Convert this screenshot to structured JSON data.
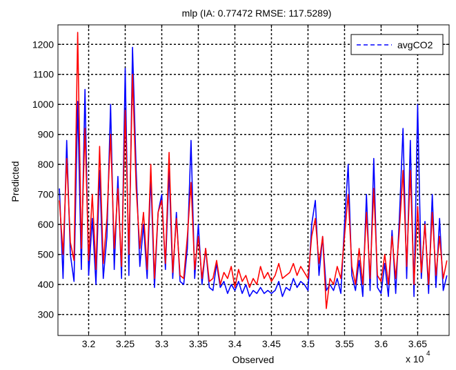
{
  "chart_data": {
    "type": "line",
    "title": "mlp (IA: 0.77472 RMSE: 117.5289)",
    "xlabel": "Observed",
    "ylabel": "Predicted",
    "x_exponent_label": "x 10",
    "x_exponent_power": "4",
    "xlim": [
      3.158,
      3.693
    ],
    "ylim": [
      230,
      1265
    ],
    "x_ticks": [
      3.2,
      3.25,
      3.3,
      3.35,
      3.4,
      3.45,
      3.5,
      3.55,
      3.6,
      3.65
    ],
    "x_tick_labels": [
      "3.2",
      "3.25",
      "3.3",
      "3.35",
      "3.4",
      "3.45",
      "3.5",
      "3.55",
      "3.6",
      "3.65"
    ],
    "y_ticks": [
      300,
      400,
      500,
      600,
      700,
      800,
      900,
      1000,
      1100,
      1200
    ],
    "y_tick_labels": [
      "300",
      "400",
      "500",
      "600",
      "700",
      "800",
      "900",
      "1000",
      "1100",
      "1200"
    ],
    "grid": true,
    "legend_position": "top-right",
    "legend": [
      {
        "label": "avgCO2",
        "style": "dashed"
      }
    ],
    "colors": {
      "observed": "#0000ff",
      "predicted": "#ff0000"
    },
    "series": [
      {
        "name": "avgCO2",
        "color": "#0000ff",
        "x": [
          3.16,
          3.165,
          3.17,
          3.175,
          3.18,
          3.185,
          3.19,
          3.195,
          3.2,
          3.205,
          3.21,
          3.215,
          3.22,
          3.225,
          3.23,
          3.235,
          3.24,
          3.245,
          3.25,
          3.255,
          3.26,
          3.265,
          3.27,
          3.275,
          3.28,
          3.285,
          3.29,
          3.295,
          3.3,
          3.305,
          3.31,
          3.315,
          3.32,
          3.325,
          3.33,
          3.335,
          3.34,
          3.345,
          3.35,
          3.355,
          3.36,
          3.365,
          3.37,
          3.375,
          3.38,
          3.385,
          3.39,
          3.395,
          3.4,
          3.405,
          3.41,
          3.415,
          3.42,
          3.425,
          3.43,
          3.435,
          3.44,
          3.445,
          3.45,
          3.455,
          3.46,
          3.465,
          3.47,
          3.475,
          3.48,
          3.485,
          3.49,
          3.495,
          3.5,
          3.505,
          3.51,
          3.515,
          3.52,
          3.525,
          3.53,
          3.535,
          3.54,
          3.545,
          3.55,
          3.555,
          3.56,
          3.565,
          3.57,
          3.575,
          3.58,
          3.585,
          3.59,
          3.595,
          3.6,
          3.605,
          3.61,
          3.615,
          3.62,
          3.625,
          3.63,
          3.635,
          3.64,
          3.645,
          3.65,
          3.655,
          3.66,
          3.665,
          3.67,
          3.675,
          3.68,
          3.685,
          3.69
        ],
        "y": [
          720,
          420,
          880,
          500,
          410,
          1010,
          450,
          1050,
          430,
          620,
          400,
          780,
          420,
          560,
          1000,
          450,
          760,
          420,
          1120,
          430,
          1190,
          780,
          460,
          600,
          420,
          760,
          390,
          640,
          700,
          450,
          780,
          420,
          640,
          410,
          400,
          520,
          880,
          420,
          600,
          400,
          520,
          390,
          380,
          470,
          390,
          410,
          370,
          400,
          380,
          410,
          370,
          400,
          360,
          380,
          370,
          390,
          370,
          380,
          370,
          380,
          410,
          360,
          390,
          380,
          420,
          390,
          410,
          400,
          380,
          600,
          680,
          430,
          560,
          380,
          400,
          380,
          420,
          370,
          600,
          800,
          430,
          380,
          480,
          360,
          700,
          380,
          820,
          390,
          370,
          470,
          360,
          580,
          370,
          620,
          920,
          420,
          880,
          360,
          1000,
          420,
          610,
          370,
          700,
          390,
          620,
          380,
          430
        ]
      },
      {
        "name": "",
        "color": "#ff0000",
        "x": [
          3.16,
          3.165,
          3.17,
          3.175,
          3.18,
          3.185,
          3.19,
          3.195,
          3.2,
          3.205,
          3.21,
          3.215,
          3.22,
          3.225,
          3.23,
          3.235,
          3.24,
          3.245,
          3.25,
          3.255,
          3.26,
          3.265,
          3.27,
          3.275,
          3.28,
          3.285,
          3.29,
          3.295,
          3.3,
          3.305,
          3.31,
          3.315,
          3.32,
          3.325,
          3.33,
          3.335,
          3.34,
          3.345,
          3.35,
          3.355,
          3.36,
          3.365,
          3.37,
          3.375,
          3.38,
          3.385,
          3.39,
          3.395,
          3.4,
          3.405,
          3.41,
          3.415,
          3.42,
          3.425,
          3.43,
          3.435,
          3.44,
          3.445,
          3.45,
          3.455,
          3.46,
          3.465,
          3.47,
          3.475,
          3.48,
          3.485,
          3.49,
          3.495,
          3.5,
          3.505,
          3.51,
          3.515,
          3.52,
          3.525,
          3.53,
          3.535,
          3.54,
          3.545,
          3.55,
          3.555,
          3.56,
          3.565,
          3.57,
          3.575,
          3.58,
          3.585,
          3.59,
          3.595,
          3.6,
          3.605,
          3.61,
          3.615,
          3.62,
          3.625,
          3.63,
          3.635,
          3.64,
          3.645,
          3.65,
          3.655,
          3.66,
          3.665,
          3.67,
          3.675,
          3.68,
          3.685,
          3.69
        ],
        "y": [
          680,
          500,
          820,
          540,
          480,
          1240,
          520,
          920,
          480,
          700,
          450,
          860,
          470,
          620,
          900,
          520,
          720,
          460,
          980,
          500,
          1100,
          720,
          520,
          640,
          450,
          800,
          420,
          640,
          680,
          470,
          840,
          440,
          620,
          430,
          420,
          560,
          740,
          450,
          560,
          420,
          520,
          410,
          420,
          480,
          400,
          440,
          420,
          460,
          390,
          450,
          410,
          430,
          390,
          420,
          400,
          460,
          420,
          440,
          410,
          430,
          470,
          420,
          430,
          440,
          470,
          430,
          460,
          440,
          420,
          560,
          620,
          470,
          560,
          320,
          420,
          400,
          460,
          420,
          560,
          700,
          460,
          400,
          520,
          400,
          640,
          420,
          720,
          430,
          410,
          500,
          400,
          560,
          420,
          580,
          780,
          460,
          780,
          400,
          660,
          440,
          600,
          400,
          640,
          430,
          560,
          420,
          480
        ]
      }
    ]
  }
}
